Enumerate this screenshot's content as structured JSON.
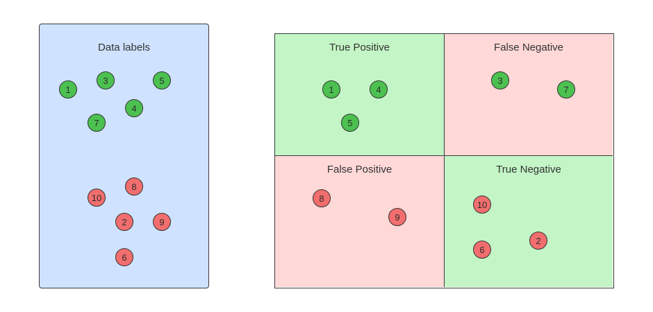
{
  "colors": {
    "data_panel_bg": "#cfe2ff",
    "quadrant_green": "#c3f5c6",
    "quadrant_red": "#ffd8d8",
    "positive_dot": "#4cc150",
    "negative_dot": "#f26e6e"
  },
  "data_panel": {
    "title": "Data labels",
    "items": {
      "p1": "1",
      "p3": "3",
      "p5": "5",
      "p4": "4",
      "p7": "7",
      "n8": "8",
      "n10": "10",
      "n2": "2",
      "n9": "9",
      "n6": "6"
    }
  },
  "matrix": {
    "tp": {
      "title": "True Positive",
      "items": {
        "a": "1",
        "b": "4",
        "c": "5"
      }
    },
    "fn": {
      "title": "False Negative",
      "items": {
        "a": "3",
        "b": "7"
      }
    },
    "fp": {
      "title": "False Positive",
      "items": {
        "a": "8",
        "b": "9"
      }
    },
    "tn": {
      "title": "True Negative",
      "items": {
        "a": "10",
        "b": "6",
        "c": "2"
      }
    }
  }
}
